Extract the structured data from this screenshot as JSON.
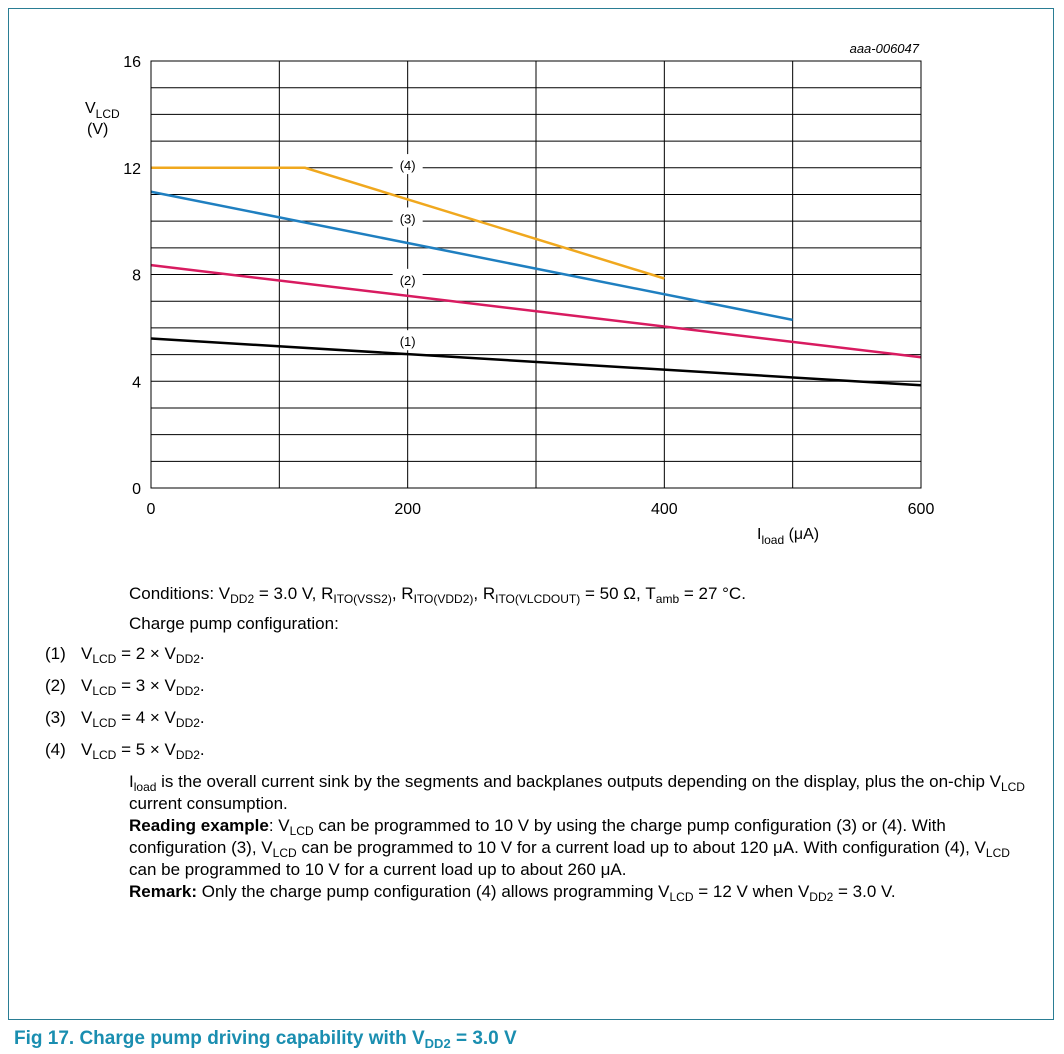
{
  "chart_data": {
    "type": "line",
    "figure_id": "aaa-006047",
    "xlabel": "I",
    "xlabel_sub": "load",
    "xlabel_unit": "(μA)",
    "ylabel": "V",
    "ylabel_sub": "LCD",
    "ylabel_unit": "(V)",
    "xlim": [
      0,
      600
    ],
    "ylim": [
      0,
      16
    ],
    "x_ticks": [
      0,
      200,
      400,
      600
    ],
    "y_ticks": [
      0,
      4,
      8,
      12,
      16
    ],
    "x_minor_step": 100,
    "y_minor_step": 1,
    "grid": true,
    "series": [
      {
        "name": "(1)",
        "color": "#000000",
        "label_at": [
          200,
          5.5
        ],
        "points": [
          [
            0,
            5.6
          ],
          [
            600,
            3.85
          ]
        ]
      },
      {
        "name": "(2)",
        "color": "#d81b60",
        "label_at": [
          200,
          7.8
        ],
        "points": [
          [
            0,
            8.35
          ],
          [
            600,
            4.9
          ]
        ]
      },
      {
        "name": "(3)",
        "color": "#1f7fc0",
        "label_at": [
          200,
          10.1
        ],
        "points": [
          [
            0,
            11.1
          ],
          [
            500,
            6.3
          ]
        ]
      },
      {
        "name": "(4)",
        "color": "#f0a81e",
        "label_at": [
          200,
          12.1
        ],
        "points": [
          [
            0,
            12.0
          ],
          [
            120,
            12.0
          ],
          [
            400,
            7.85
          ]
        ]
      }
    ]
  },
  "notes": {
    "conditions": [
      {
        "t": "Conditions: V"
      },
      {
        "s": "DD2"
      },
      {
        "t": " = 3.0 V, R"
      },
      {
        "s": "ITO(VSS2)"
      },
      {
        "t": ", R"
      },
      {
        "s": "ITO(VDD2)"
      },
      {
        "t": ", R"
      },
      {
        "s": "ITO(VLCDOUT)"
      },
      {
        "t": " = 50 Ω, T"
      },
      {
        "s": "amb"
      },
      {
        "t": " = 27 °C."
      }
    ],
    "charge_pump_heading": "Charge pump configuration:",
    "configs": [
      {
        "num": "(1)",
        "parts": [
          {
            "t": "V"
          },
          {
            "s": "LCD"
          },
          {
            "t": " = 2 × V"
          },
          {
            "s": "DD2"
          },
          {
            "t": "."
          }
        ]
      },
      {
        "num": "(2)",
        "parts": [
          {
            "t": "V"
          },
          {
            "s": "LCD"
          },
          {
            "t": " = 3 × V"
          },
          {
            "s": "DD2"
          },
          {
            "t": "."
          }
        ]
      },
      {
        "num": "(3)",
        "parts": [
          {
            "t": "V"
          },
          {
            "s": "LCD"
          },
          {
            "t": " = 4 × V"
          },
          {
            "s": "DD2"
          },
          {
            "t": "."
          }
        ]
      },
      {
        "num": "(4)",
        "parts": [
          {
            "t": "V"
          },
          {
            "s": "LCD"
          },
          {
            "t": " = 5 × V"
          },
          {
            "s": "DD2"
          },
          {
            "t": "."
          }
        ]
      }
    ],
    "iload_para": [
      {
        "t": "I"
      },
      {
        "s": "load"
      },
      {
        "t": " is the overall current sink by the segments and backplanes outputs depending on the display, plus the on-chip V"
      },
      {
        "s": "LCD"
      },
      {
        "t": " current consumption."
      }
    ],
    "reading_example": [
      {
        "b": "Reading example"
      },
      {
        "t": ": V"
      },
      {
        "s": "LCD"
      },
      {
        "t": " can be programmed to 10 V by using the charge pump configuration (3) or (4). With configuration (3), V"
      },
      {
        "s": "LCD"
      },
      {
        "t": " can be programmed to 10 V for a current load up to about 120 μA. With configuration (4), V"
      },
      {
        "s": "LCD"
      },
      {
        "t": " can be programmed to 10 V for a current load up to about 260 μA."
      }
    ],
    "remark": [
      {
        "b": "Remark:"
      },
      {
        "t": " Only the charge pump configuration (4) allows programming V"
      },
      {
        "s": "LCD"
      },
      {
        "t": " = 12 V when V"
      },
      {
        "s": "DD2"
      },
      {
        "t": " = 3.0 V."
      }
    ]
  },
  "figure_title": [
    {
      "t": "Fig 17.   Charge pump driving capability with V"
    },
    {
      "s": "DD2"
    },
    {
      "t": " = 3.0 V"
    }
  ],
  "colors": {
    "frame": "#2a7d94",
    "title": "#1a8eb0"
  }
}
